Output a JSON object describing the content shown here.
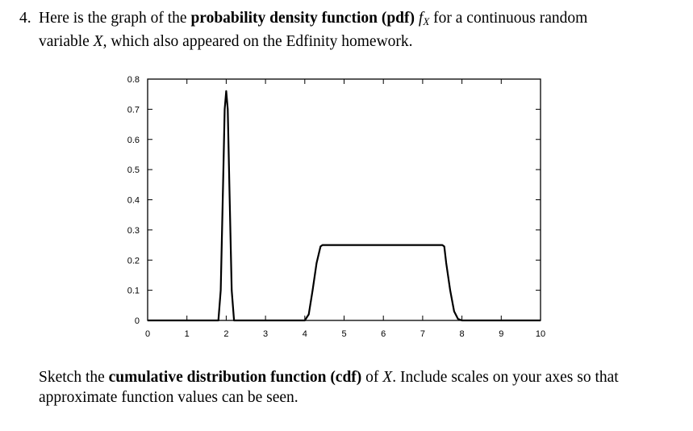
{
  "question": {
    "number": "4.",
    "line1_pre": "Here is the graph of the ",
    "line1_bold": "probability density function (pdf)",
    "line1_f": "f",
    "line1_sub": "X",
    "line1_post": " for a continuous random",
    "line2_pre": "variable ",
    "line2_var": "X",
    "line2_post": ", which also appeared on the Edfinity homework."
  },
  "instruction": {
    "pre": "Sketch the ",
    "bold": "cumulative distribution function (cdf)",
    "mid": " of ",
    "var": "X",
    "post": ". Include scales on your axes so that approximate function values can be seen."
  },
  "chart_data": {
    "type": "line",
    "title": "",
    "xlabel": "",
    "ylabel": "",
    "xlim": [
      0,
      10
    ],
    "ylim": [
      0,
      0.8
    ],
    "x_ticks": [
      "0",
      "1",
      "2",
      "3",
      "4",
      "5",
      "6",
      "7",
      "8",
      "9",
      "10"
    ],
    "y_ticks": [
      "0",
      "0.1",
      "0.2",
      "0.3",
      "0.4",
      "0.5",
      "0.6",
      "0.7",
      "0.8"
    ],
    "grid": false,
    "series": [
      {
        "name": "",
        "x": [
          0,
          1.8,
          1.86,
          1.92,
          1.96,
          2.0,
          2.04,
          2.08,
          2.14,
          2.2,
          4.0,
          4.1,
          4.2,
          4.3,
          4.4,
          4.45,
          7.5,
          7.55,
          7.6,
          7.7,
          7.8,
          7.9,
          8.0,
          10
        ],
        "y": [
          0,
          0,
          0.1,
          0.45,
          0.7,
          0.76,
          0.7,
          0.45,
          0.1,
          0,
          0,
          0.02,
          0.1,
          0.19,
          0.245,
          0.25,
          0.25,
          0.245,
          0.19,
          0.1,
          0.03,
          0.005,
          0,
          0
        ]
      }
    ]
  }
}
